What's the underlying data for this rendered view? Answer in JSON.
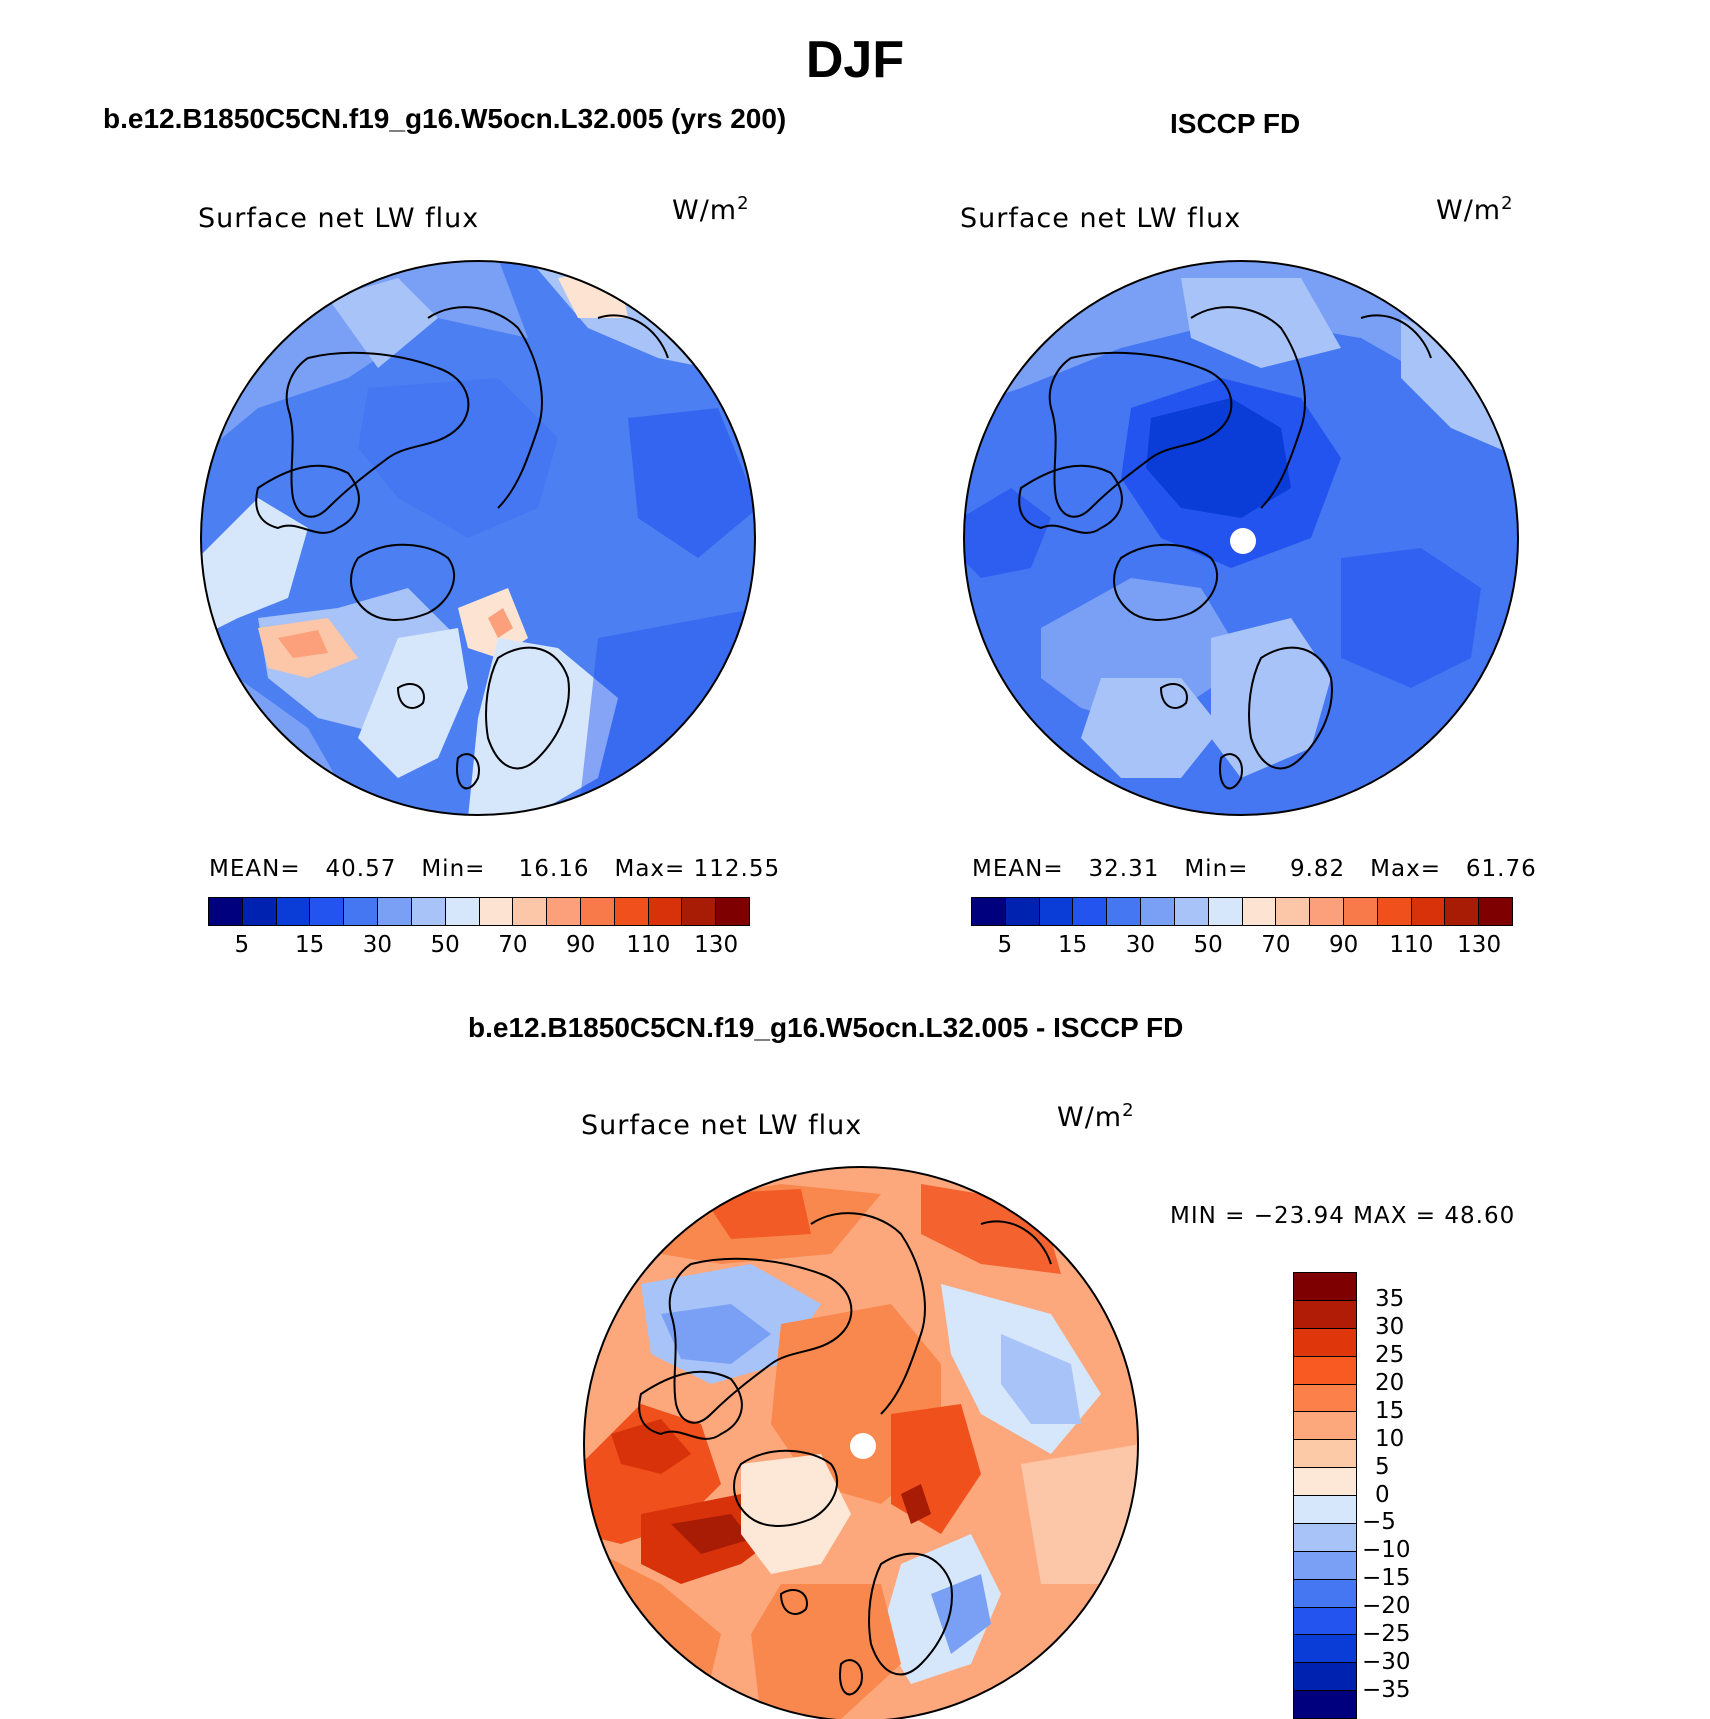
{
  "title": "DJF",
  "panels": [
    {
      "case": "b.e12.B1850C5CN.f19_g16.W5ocn.L32.005 (yrs 200)",
      "variable": "Surface net LW flux",
      "units_base": "W/m",
      "units_exp": "2",
      "mean_label": "MEAN=",
      "mean": "40.57",
      "min_label": "Min=",
      "min": "16.16",
      "max_label": "Max=",
      "max": "112.55",
      "base_color": "#4c7ff2"
    },
    {
      "case": "ISCCP FD",
      "variable": "Surface net LW flux",
      "units_base": "W/m",
      "units_exp": "2",
      "mean_label": "MEAN=",
      "mean": "32.31",
      "min_label": "Min=",
      "min": "9.82",
      "max_label": "Max=",
      "max": "61.76",
      "base_color": "#3d6ef0"
    }
  ],
  "abs_colorbar": {
    "colors": [
      "#00007f",
      "#0022b0",
      "#0a3cd8",
      "#2454f0",
      "#4577f2",
      "#7aa0f5",
      "#a8c3f8",
      "#d6e6fb",
      "#fde4d2",
      "#fcc6a8",
      "#fba07a",
      "#f87a4a",
      "#f0501c",
      "#d8320a",
      "#a81b05",
      "#7f0000"
    ],
    "ticks": [
      "5",
      "15",
      "30",
      "50",
      "70",
      "90",
      "110",
      "130"
    ]
  },
  "diff_panel": {
    "case": "b.e12.B1850C5CN.f19_g16.W5ocn.L32.005 - ISCCP FD",
    "variable": "Surface net LW flux",
    "units_base": "W/m",
    "units_exp": "2",
    "minmax_text": "MIN = −23.94 MAX =   48.60",
    "base_color": "#f8884e"
  },
  "diff_colorbar": {
    "colors": [
      "#7f0000",
      "#b01c05",
      "#e0360c",
      "#f85a22",
      "#fb804a",
      "#fca87c",
      "#fdcaa8",
      "#fde8d8",
      "#d6e6fb",
      "#a8c3f8",
      "#7aa0f5",
      "#4577f2",
      "#2454f0",
      "#0a3cd8",
      "#0022b0",
      "#00007f"
    ],
    "ticks": [
      "35",
      "30",
      "25",
      "20",
      "15",
      "10",
      "5",
      "0",
      "−5",
      "−10",
      "−15",
      "−20",
      "−25",
      "−30",
      "−35"
    ]
  }
}
